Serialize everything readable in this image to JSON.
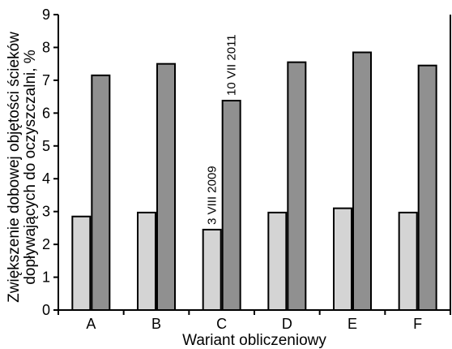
{
  "chart_data": {
    "type": "bar",
    "xlabel": "Wariant obliczeniowy",
    "ylabel_lines": [
      "Zwiększenie dobowej objętości ścieków",
      "dopływających do oczyszczalni, %"
    ],
    "categories": [
      "A",
      "B",
      "C",
      "D",
      "E",
      "F"
    ],
    "series": [
      {
        "values": [
          2.85,
          2.97,
          2.45,
          2.97,
          3.1,
          2.97
        ],
        "color": "#d4d4d4"
      },
      {
        "values": [
          7.15,
          7.5,
          6.38,
          7.55,
          7.85,
          7.45
        ],
        "color": "#909090"
      }
    ],
    "ylim": [
      0,
      9
    ],
    "yticks": [
      "0",
      "1",
      "2",
      "3",
      "4",
      "5",
      "6",
      "7",
      "8",
      "9"
    ],
    "grid": false,
    "annotations": [
      {
        "text": "3 VIII 2009",
        "category": "C",
        "series": 0
      },
      {
        "text": "10 VII 2011",
        "category": "C",
        "series": 1
      }
    ]
  }
}
